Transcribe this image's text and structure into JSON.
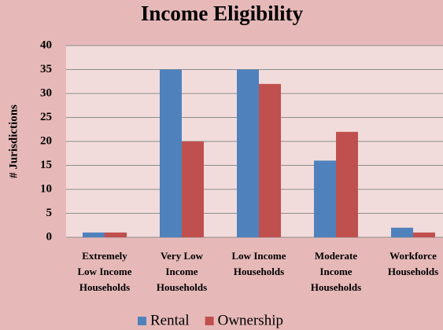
{
  "chart_data": {
    "type": "bar",
    "title": "Income Eligibility",
    "y_label": "# Jurisdictions",
    "categories": [
      "Extremely\nLow Income\nHouseholds",
      "Very Low\nIncome\nHouseholds",
      "Low Income\nHouseholds",
      "Moderate\nIncome\nHouseholds",
      "Workforce\nHouseholds"
    ],
    "series": [
      {
        "name": "Rental",
        "color": "#4f81bd",
        "values": [
          1,
          35,
          35,
          16,
          2
        ]
      },
      {
        "name": "Ownership",
        "color": "#c0504d",
        "values": [
          1,
          20,
          32,
          22,
          1
        ]
      }
    ],
    "ylim": [
      0,
      40
    ],
    "yticks": [
      0,
      5,
      10,
      15,
      20,
      25,
      30,
      35,
      40
    ],
    "grid": true,
    "legend": "bottom"
  }
}
